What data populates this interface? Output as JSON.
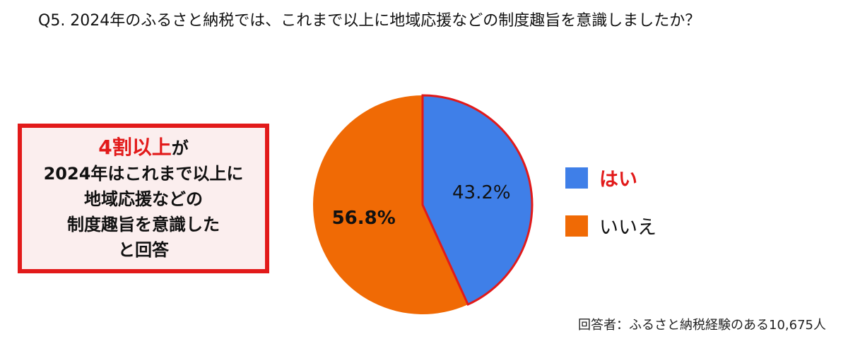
{
  "title": "Q5. 2024年のふるさと納税では、これまで以上に地域応援などの制度趣旨を意識しましたか？",
  "callout": {
    "highlight": "4割以上",
    "line1_suffix": "が",
    "line2": "2024年はこれまで以上に",
    "line3": "地域応援などの",
    "line4": "制度趣旨を意識した",
    "line5": "と回答"
  },
  "chart_data": {
    "type": "pie",
    "title": "Q5. 2024年のふるさと納税では、これまで以上に地域応援などの制度趣旨を意識しましたか？",
    "categories": [
      "はい",
      "いいえ"
    ],
    "values": [
      43.2,
      56.8
    ],
    "labels": [
      "43.2%",
      "56.8%"
    ],
    "colors": [
      "#3f7fe8",
      "#f06a05"
    ],
    "highlight_outline": "#e21a1a",
    "start": "top, clockwise",
    "legend_position": "right"
  },
  "note": "回答者：ふるさと納税経験のある10,675人"
}
